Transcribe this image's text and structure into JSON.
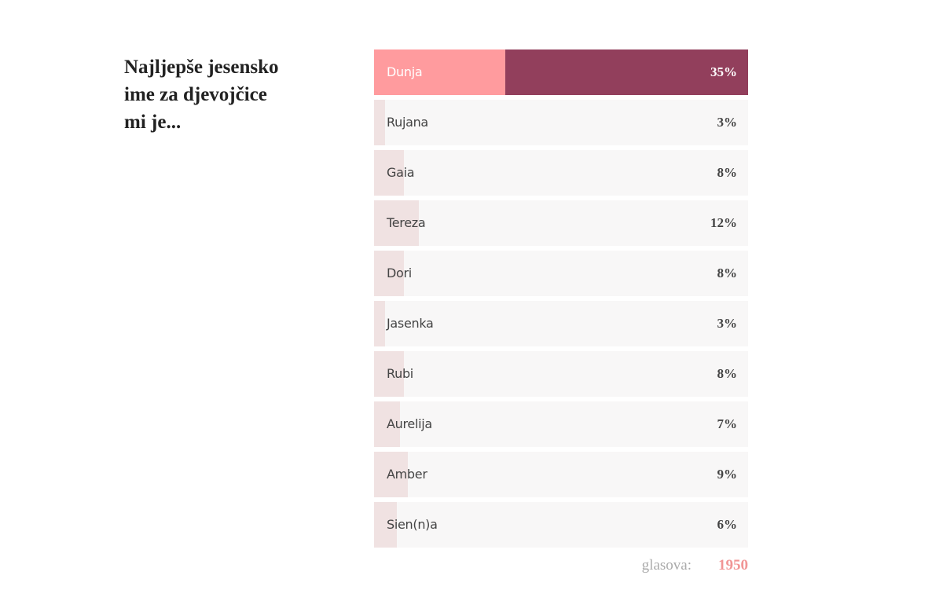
{
  "title": "Najljepše jesensko ime za djevojčice mi je...",
  "poll": {
    "options": [
      {
        "name": "Dunja",
        "value": 35,
        "label": "35%"
      },
      {
        "name": "Rujana",
        "value": 3,
        "label": "3%"
      },
      {
        "name": "Gaia",
        "value": 8,
        "label": "8%"
      },
      {
        "name": "Tereza",
        "value": 12,
        "label": "12%"
      },
      {
        "name": "Dori",
        "value": 8,
        "label": "8%"
      },
      {
        "name": "Jasenka",
        "value": 3,
        "label": "3%"
      },
      {
        "name": "Rubi",
        "value": 8,
        "label": "8%"
      },
      {
        "name": "Aurelija",
        "value": 7,
        "label": "7%"
      },
      {
        "name": "Amber",
        "value": 9,
        "label": "9%"
      },
      {
        "name": "Sien(n)a",
        "value": 6,
        "label": "6%"
      }
    ],
    "votes_label": "glasova:",
    "votes": 1950
  }
}
